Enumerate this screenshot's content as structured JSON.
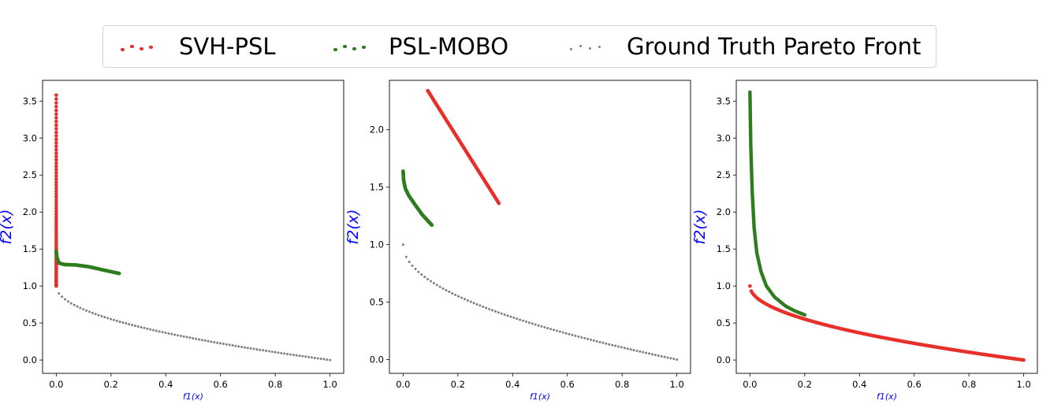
{
  "legend": {
    "placement": "top-center",
    "items": [
      {
        "label": "SVH-PSL",
        "color": "#e8302a"
      },
      {
        "label": "PSL-MOBO",
        "color": "#2e7d1e"
      },
      {
        "label": "Ground Truth Pareto Front",
        "color": "#7f7f7f"
      }
    ]
  },
  "chart_data": [
    {
      "type": "scatter",
      "xlabel": "f1(x)",
      "ylabel": "f2(x)",
      "xlim": [
        -0.05,
        1.05
      ],
      "ylim": [
        -0.18,
        3.78
      ],
      "xticks": [
        0.0,
        0.2,
        0.4,
        0.6,
        0.8,
        1.0
      ],
      "yticks": [
        0.0,
        0.5,
        1.0,
        1.5,
        2.0,
        2.5,
        3.0,
        3.5
      ],
      "tick_labels_x": [
        "0.0",
        "0.2",
        "0.4",
        "0.6",
        "0.8",
        "1.0"
      ],
      "tick_labels_y": [
        "0.0",
        "0.5",
        "1.0",
        "1.5",
        "2.0",
        "2.5",
        "3.0",
        "3.5"
      ],
      "series": [
        {
          "name": "Ground Truth Pareto Front",
          "kind": "front",
          "from": 0.01,
          "to": 1.0,
          "points": 90
        },
        {
          "name": "SVH-PSL",
          "kind": "vertical",
          "x": 0.0,
          "y_range": [
            1.0,
            3.58
          ],
          "points": 80
        },
        {
          "name": "PSL-MOBO",
          "kind": "polyline",
          "points": 110,
          "path": [
            [
              0.0,
              1.47
            ],
            [
              0.003,
              1.38
            ],
            [
              0.01,
              1.31
            ],
            [
              0.03,
              1.29
            ],
            [
              0.07,
              1.285
            ],
            [
              0.12,
              1.26
            ],
            [
              0.18,
              1.21
            ],
            [
              0.23,
              1.17
            ]
          ]
        }
      ]
    },
    {
      "type": "scatter",
      "xlabel": "f1(x)",
      "ylabel": "f2(x)",
      "xlim": [
        -0.05,
        1.05
      ],
      "ylim": [
        -0.12,
        2.43
      ],
      "xticks": [
        0.0,
        0.2,
        0.4,
        0.6,
        0.8,
        1.0
      ],
      "yticks": [
        0.0,
        0.5,
        1.0,
        1.5,
        2.0
      ],
      "tick_labels_x": [
        "0.0",
        "0.2",
        "0.4",
        "0.6",
        "0.8",
        "1.0"
      ],
      "tick_labels_y": [
        "0.0",
        "0.5",
        "1.0",
        "1.5",
        "2.0"
      ],
      "series": [
        {
          "name": "Ground Truth Pareto Front",
          "kind": "front",
          "from": 0.0,
          "to": 1.0,
          "points": 90
        },
        {
          "name": "SVH-PSL",
          "kind": "polyline",
          "points": 120,
          "path": [
            [
              0.09,
              2.34
            ],
            [
              0.35,
              1.36
            ]
          ]
        },
        {
          "name": "PSL-MOBO",
          "kind": "polyline",
          "points": 110,
          "path": [
            [
              0.0,
              1.64
            ],
            [
              0.002,
              1.56
            ],
            [
              0.008,
              1.49
            ],
            [
              0.02,
              1.43
            ],
            [
              0.04,
              1.36
            ],
            [
              0.07,
              1.26
            ],
            [
              0.105,
              1.17
            ]
          ]
        }
      ]
    },
    {
      "type": "scatter",
      "xlabel": "f1(x)",
      "ylabel": "f2(x)",
      "xlim": [
        -0.05,
        1.05
      ],
      "ylim": [
        -0.18,
        3.78
      ],
      "xticks": [
        0.0,
        0.2,
        0.4,
        0.6,
        0.8,
        1.0
      ],
      "yticks": [
        0.0,
        0.5,
        1.0,
        1.5,
        2.0,
        2.5,
        3.0,
        3.5
      ],
      "tick_labels_x": [
        "0.0",
        "0.2",
        "0.4",
        "0.6",
        "0.8",
        "1.0"
      ],
      "tick_labels_y": [
        "0.0",
        "0.5",
        "1.0",
        "1.5",
        "2.0",
        "2.5",
        "3.0",
        "3.5"
      ],
      "series": [
        {
          "name": "Ground Truth Pareto Front",
          "kind": "front",
          "from": 0.0,
          "to": 1.0,
          "points": 90
        },
        {
          "name": "SVH-PSL",
          "kind": "front",
          "from": 0.0,
          "to": 1.0,
          "points": 220
        },
        {
          "name": "PSL-MOBO",
          "kind": "polyline",
          "points": 150,
          "path": [
            [
              0.0,
              3.62
            ],
            [
              0.003,
              2.9
            ],
            [
              0.008,
              2.3
            ],
            [
              0.015,
              1.8
            ],
            [
              0.025,
              1.45
            ],
            [
              0.04,
              1.2
            ],
            [
              0.06,
              1.0
            ],
            [
              0.09,
              0.85
            ],
            [
              0.13,
              0.73
            ],
            [
              0.16,
              0.67
            ],
            [
              0.2,
              0.61
            ]
          ]
        }
      ]
    }
  ]
}
